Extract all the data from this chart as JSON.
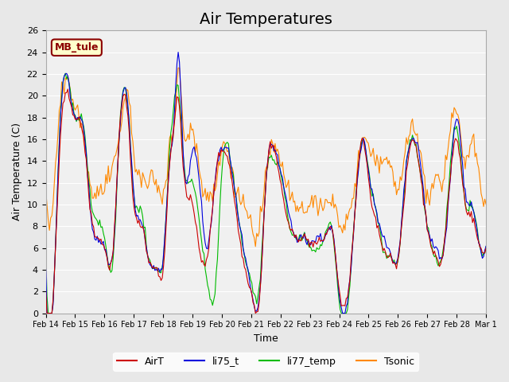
{
  "title": "Air Temperatures",
  "xlabel": "Time",
  "ylabel": "Air Temperature (C)",
  "ylim": [
    0,
    26
  ],
  "site_label": "MB_tule",
  "x_tick_labels": [
    "Feb 14",
    "Feb 15",
    "Feb 16",
    "Feb 17",
    "Feb 18",
    "Feb 19",
    "Feb 20",
    "Feb 21",
    "Feb 22",
    "Feb 23",
    "Feb 24",
    "Feb 25",
    "Feb 26",
    "Feb 27",
    "Feb 28",
    "Mar 1"
  ],
  "series_colors": {
    "AirT": "#cc0000",
    "li75_t": "#0000dd",
    "li77_temp": "#00bb00",
    "Tsonic": "#ff8800"
  },
  "legend_labels": [
    "AirT",
    "li75_t",
    "li77_temp",
    "Tsonic"
  ],
  "bg_color": "#e8e8e8",
  "plot_bg_color": "#f0f0f0",
  "title_fontsize": 14,
  "axis_fontsize": 9
}
